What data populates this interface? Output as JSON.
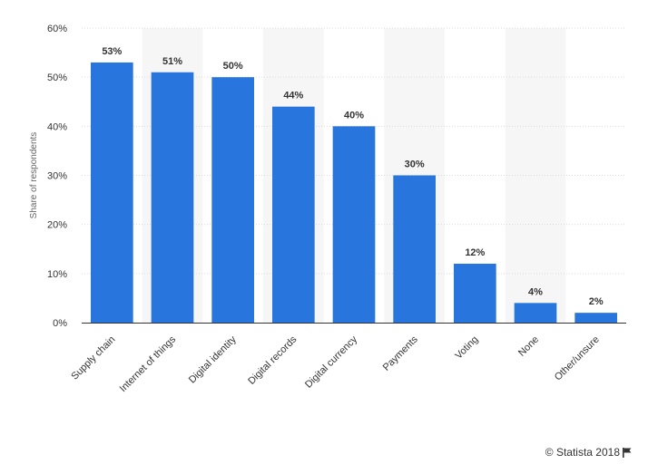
{
  "chart_data": {
    "type": "bar",
    "categories": [
      "Supply chain",
      "Internet of things",
      "Digital identity",
      "Digital records",
      "Digital currency",
      "Payments",
      "Voting",
      "None",
      "Other/unsure"
    ],
    "values": [
      53,
      51,
      50,
      44,
      40,
      30,
      12,
      4,
      2
    ],
    "data_labels": [
      "53%",
      "51%",
      "50%",
      "44%",
      "40%",
      "30%",
      "12%",
      "4%",
      "2%"
    ],
    "ylabel": "Share of respondents",
    "ylim": [
      0,
      60
    ],
    "yticks": [
      0,
      10,
      20,
      30,
      40,
      50,
      60
    ],
    "ytick_labels": [
      "0%",
      "10%",
      "20%",
      "30%",
      "40%",
      "50%",
      "60%"
    ],
    "grid": true,
    "bar_color": "#2875dd",
    "band_color": "#f6f6f6"
  },
  "credit": {
    "text": "© Statista 2018",
    "icon": "flag-icon"
  }
}
